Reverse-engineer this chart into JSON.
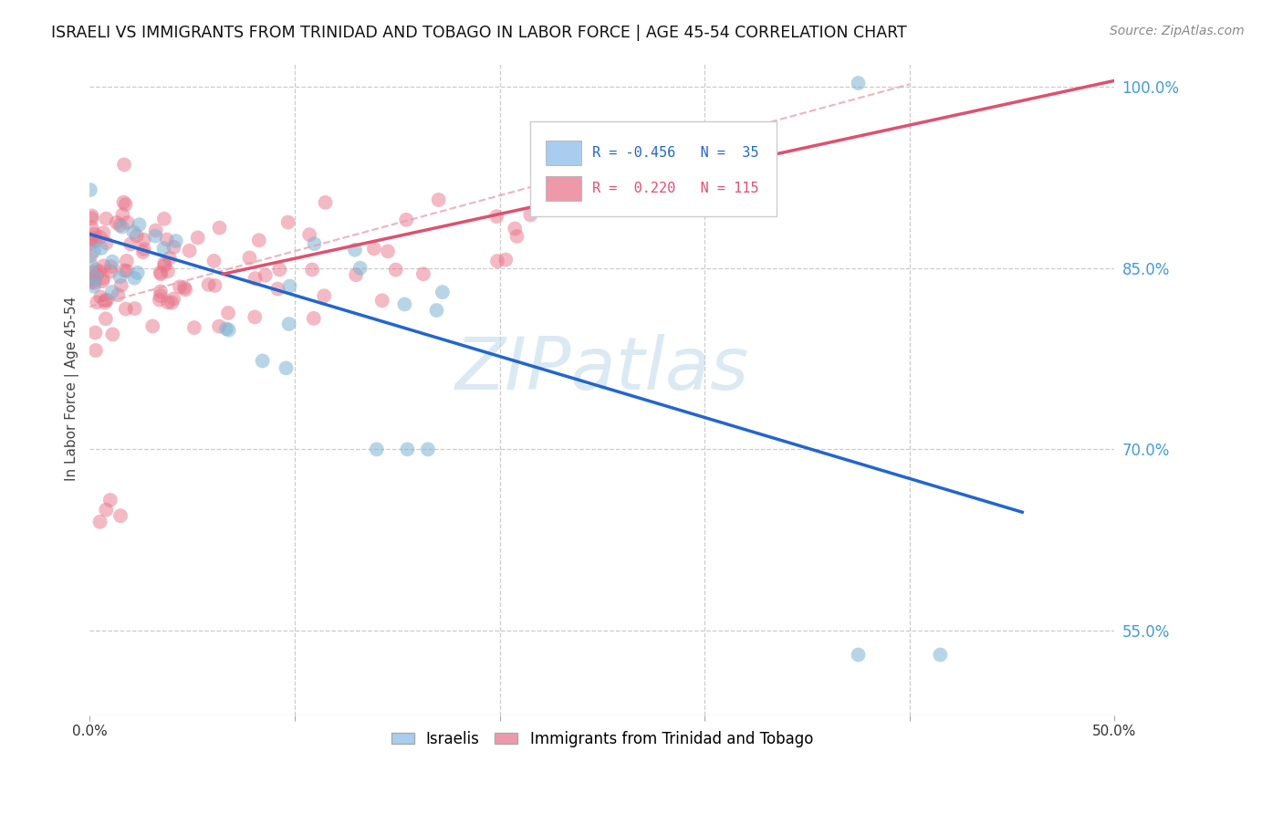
{
  "title": "ISRAELI VS IMMIGRANTS FROM TRINIDAD AND TOBAGO IN LABOR FORCE | AGE 45-54 CORRELATION CHART",
  "source": "Source: ZipAtlas.com",
  "ylabel": "In Labor Force | Age 45-54",
  "xlim": [
    0.0,
    0.5
  ],
  "ylim": [
    0.48,
    1.02
  ],
  "xticks": [
    0.0,
    0.1,
    0.2,
    0.3,
    0.4,
    0.5
  ],
  "yticks": [
    0.55,
    0.7,
    0.85,
    1.0
  ],
  "ytick_labels": [
    "55.0%",
    "70.0%",
    "85.0%",
    "100.0%"
  ],
  "grid_color": "#cccccc",
  "background_color": "#ffffff",
  "watermark_color": "#b8d4e8",
  "israeli_color": "#7fb3d3",
  "trinidad_color": "#e8748a",
  "israeli_R": -0.456,
  "israeli_N": 35,
  "trinidad_R": 0.22,
  "trinidad_N": 115,
  "israeli_line": [
    0.0,
    0.878,
    0.455,
    0.648
  ],
  "trinidad_solid_line": [
    0.065,
    0.845,
    0.5,
    1.005
  ],
  "trinidad_dashed_line": [
    0.0,
    0.818,
    0.4,
    1.002
  ]
}
